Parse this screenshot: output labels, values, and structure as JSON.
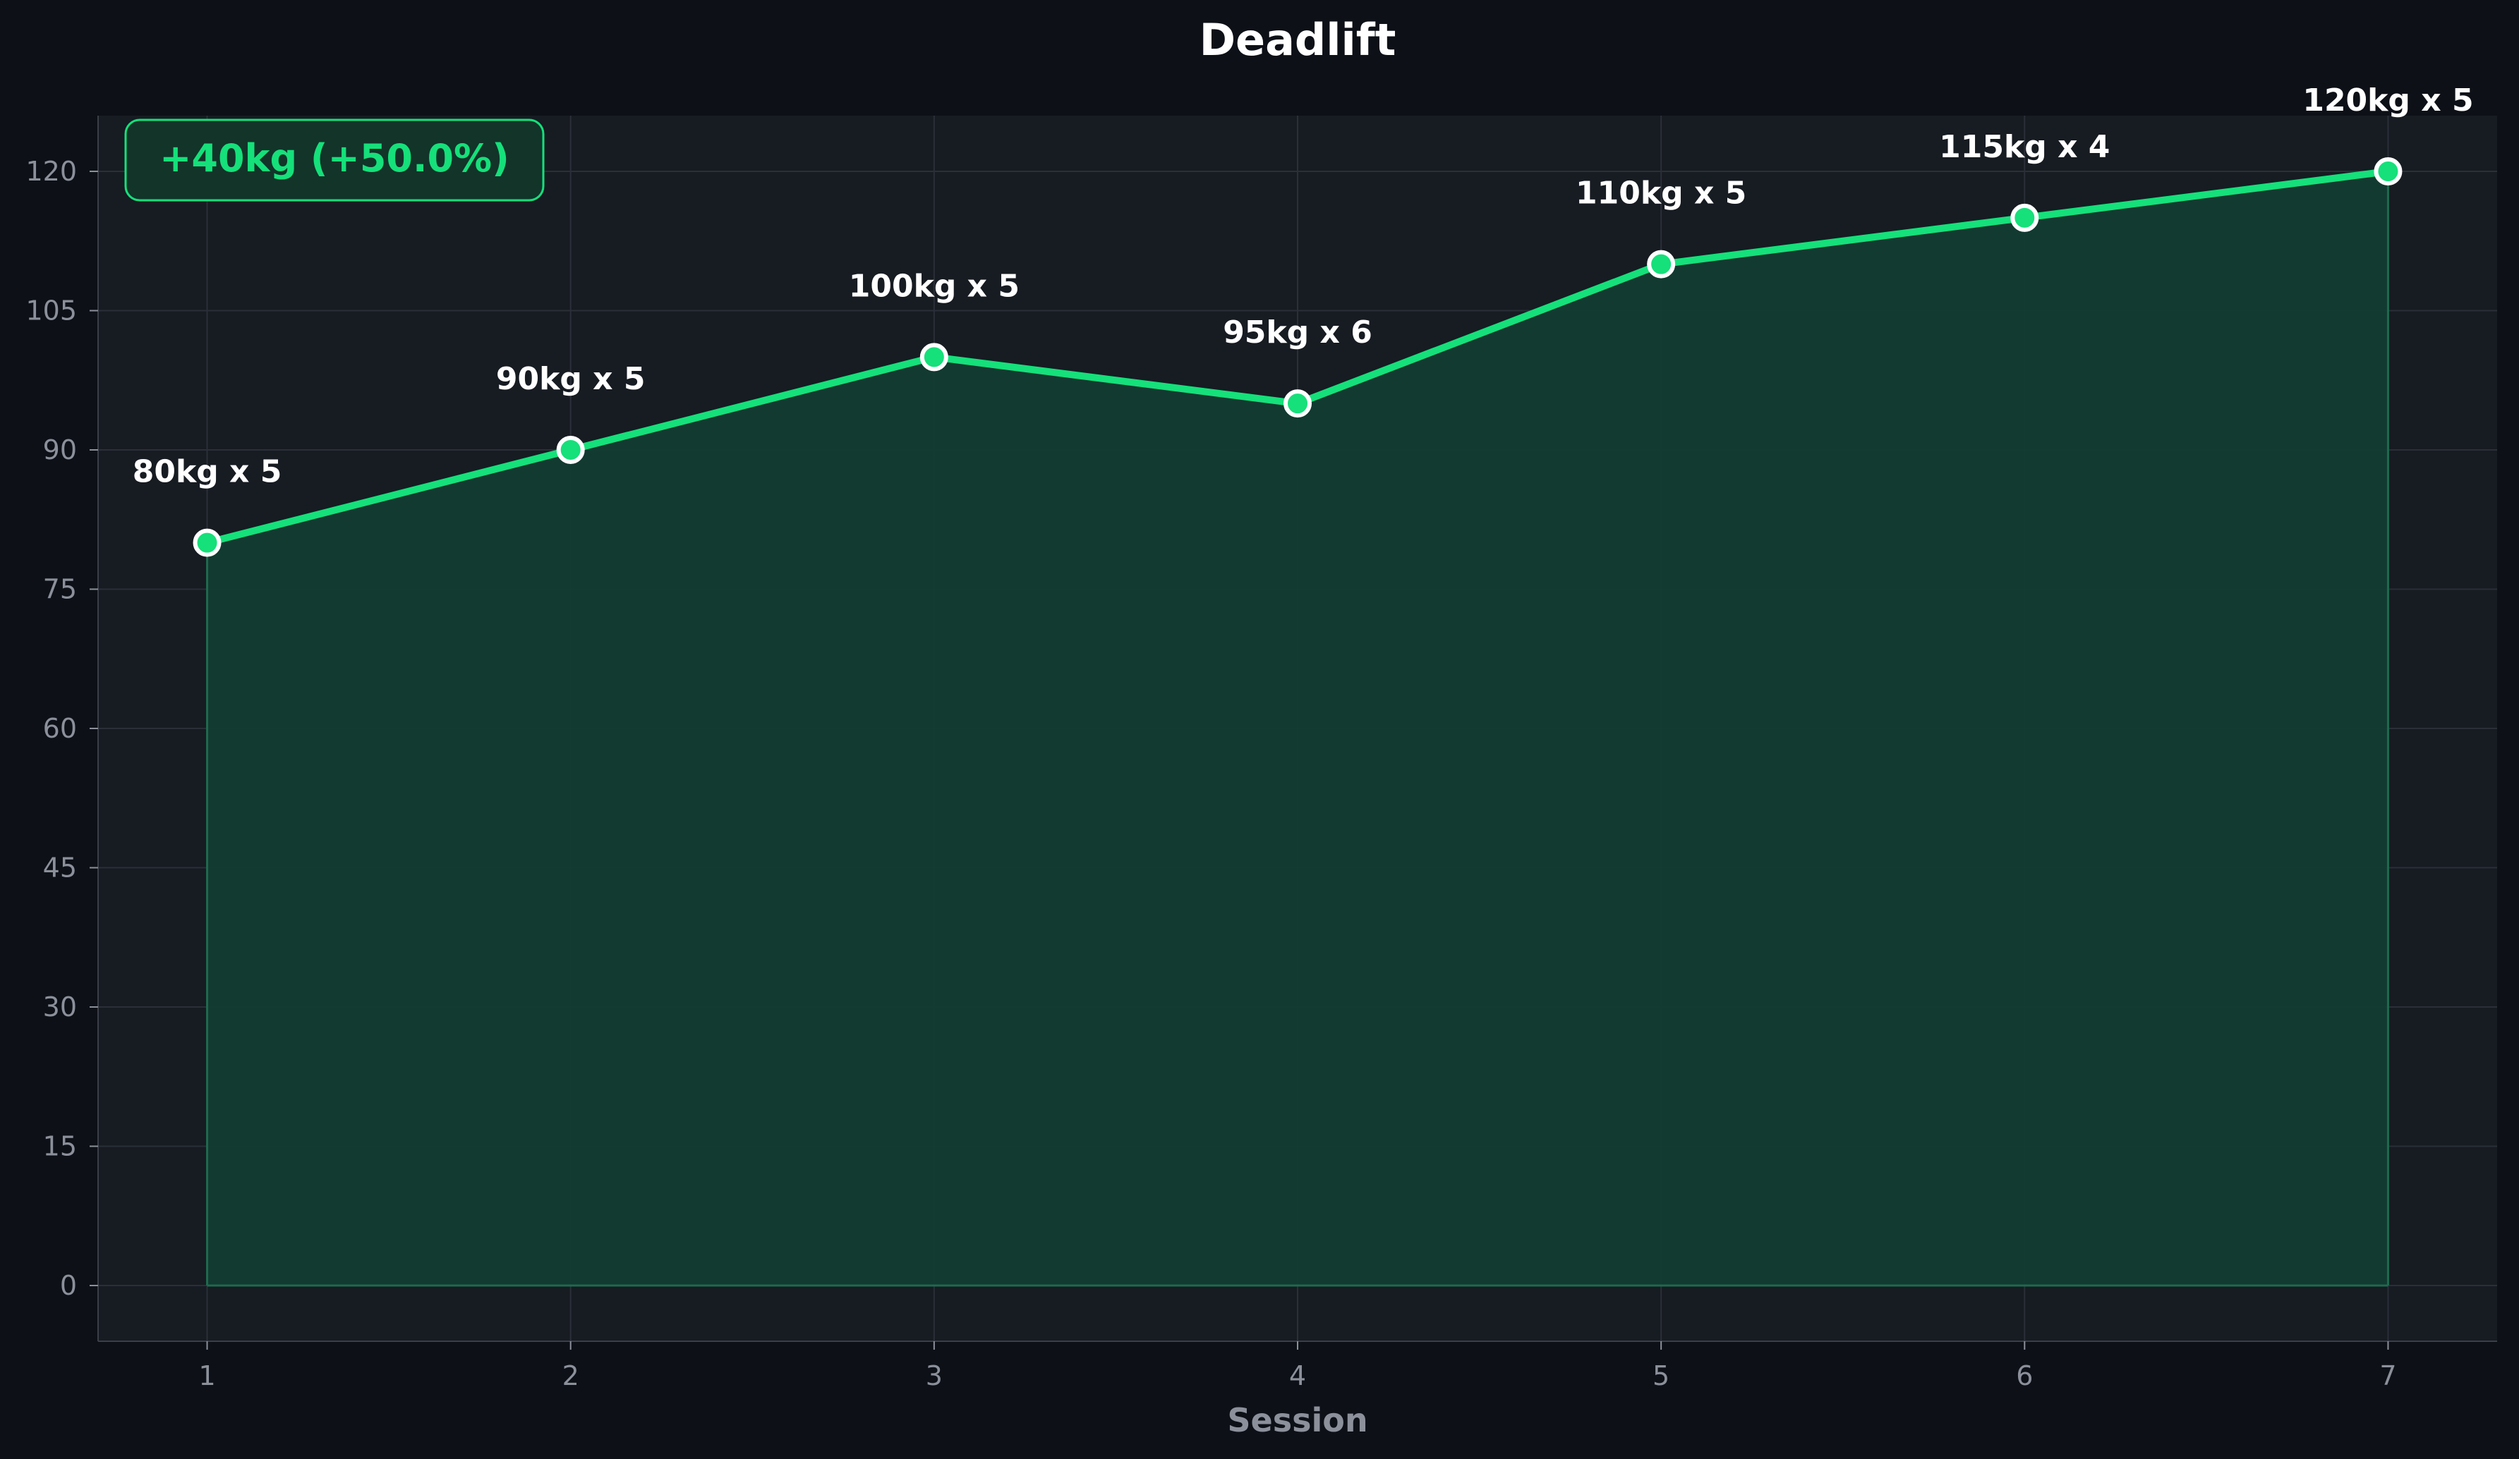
{
  "colors": {
    "page_bg": "#0d1017",
    "plot_bg": "#171b22",
    "grid": "#2a2f38",
    "line": "#15e07a",
    "fill": "#123d32",
    "text": "#ffffff",
    "tick_text": "#8b909a",
    "badge_bg": "#123429",
    "badge_border": "#15e07a"
  },
  "chart_data": {
    "type": "area",
    "title": "Deadlift",
    "xlabel": "Session",
    "ylabel": "",
    "x": [
      1,
      2,
      3,
      4,
      5,
      6,
      7
    ],
    "series": [
      {
        "values": [
          80,
          90,
          100,
          95,
          110,
          115,
          120
        ],
        "point_labels": [
          "80kg x 5",
          "90kg x 5",
          "100kg x 5",
          "95kg x 6",
          "110kg x 5",
          "115kg x 4",
          "120kg x 5"
        ]
      }
    ],
    "xlim": [
      0.7,
      7.3
    ],
    "ylim": [
      -6,
      126
    ],
    "x_ticks": [
      1,
      2,
      3,
      4,
      5,
      6,
      7
    ],
    "y_ticks": [
      0,
      15,
      30,
      45,
      60,
      75,
      90,
      105,
      120
    ],
    "grid": true,
    "annotation": "+40kg (+50.0%)"
  }
}
